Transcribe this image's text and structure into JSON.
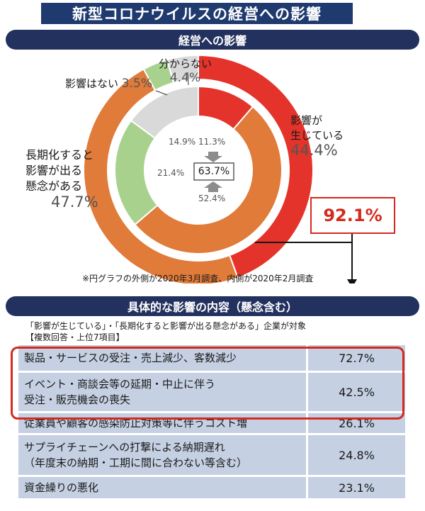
{
  "title": "新型コロナウイルスの経営への影響",
  "section1": "経営への影響",
  "section2": "具体的な影響の内容（懸念含む）",
  "chart_data": {
    "type": "pie",
    "subtype": "nested-donut",
    "title": "経営への影響",
    "outer_label": "2020年3月調査",
    "inner_label": "2020年2月調査",
    "categories": [
      "影響が生じている",
      "長期化すると影響が出る懸念がある",
      "影響はない",
      "分からない"
    ],
    "series": [
      {
        "name": "2020年3月調査（外側）",
        "values": [
          44.4,
          47.7,
          3.5,
          4.4
        ]
      },
      {
        "name": "2020年2月調査（内側）",
        "values": [
          11.3,
          52.4,
          21.4,
          14.9
        ]
      }
    ],
    "colors": [
      "#e4332a",
      "#e07b39",
      "#a9d18e",
      "#d9d9d9"
    ],
    "combined_inner": "63.7%",
    "combined_outer": "92.1%"
  },
  "labels": {
    "affected_line1": "影響が",
    "affected_line2": "生じている",
    "affected_pct": "44.4%",
    "concern_line1": "長期化すると",
    "concern_line2": "影響が出る",
    "concern_line3": "懸念がある",
    "concern_pct": "47.7%",
    "none_text": "影響はない",
    "none_pct": "3.5%",
    "unknown_text": "分からない",
    "unknown_pct": "4.4%",
    "inner_unknown": "14.9%",
    "inner_affected": "11.3%",
    "inner_none": "21.4%",
    "inner_concern": "52.4%",
    "inner_sum": "63.7%",
    "outer_sum": "92.1%"
  },
  "note": "※円グラフの外側が2020年3月調査、内側が2020年2月調査",
  "target_line1": "「影響が生じている」・「長期化すると影響が出る懸念がある」企業が対象",
  "target_line2": "【複数回答・上位7項目】",
  "table": [
    {
      "item": "製品・サービスの受注・売上減少、客数減少",
      "pct": "72.7%"
    },
    {
      "item1": "イベント・商談会等の延期・中止に伴う",
      "item2": "受注・販売機会の喪失",
      "pct": "42.5%"
    },
    {
      "item": "従業員や顧客の感染防止対策等に伴うコスト増",
      "pct": "26.1%"
    },
    {
      "item1": "サプライチェーンへの打撃による納期遅れ",
      "item2": "（年度末の納期・工期に間に合わない等含む）",
      "pct": "24.8%"
    },
    {
      "item": "資金繰りの悪化",
      "pct": "23.1%"
    }
  ]
}
